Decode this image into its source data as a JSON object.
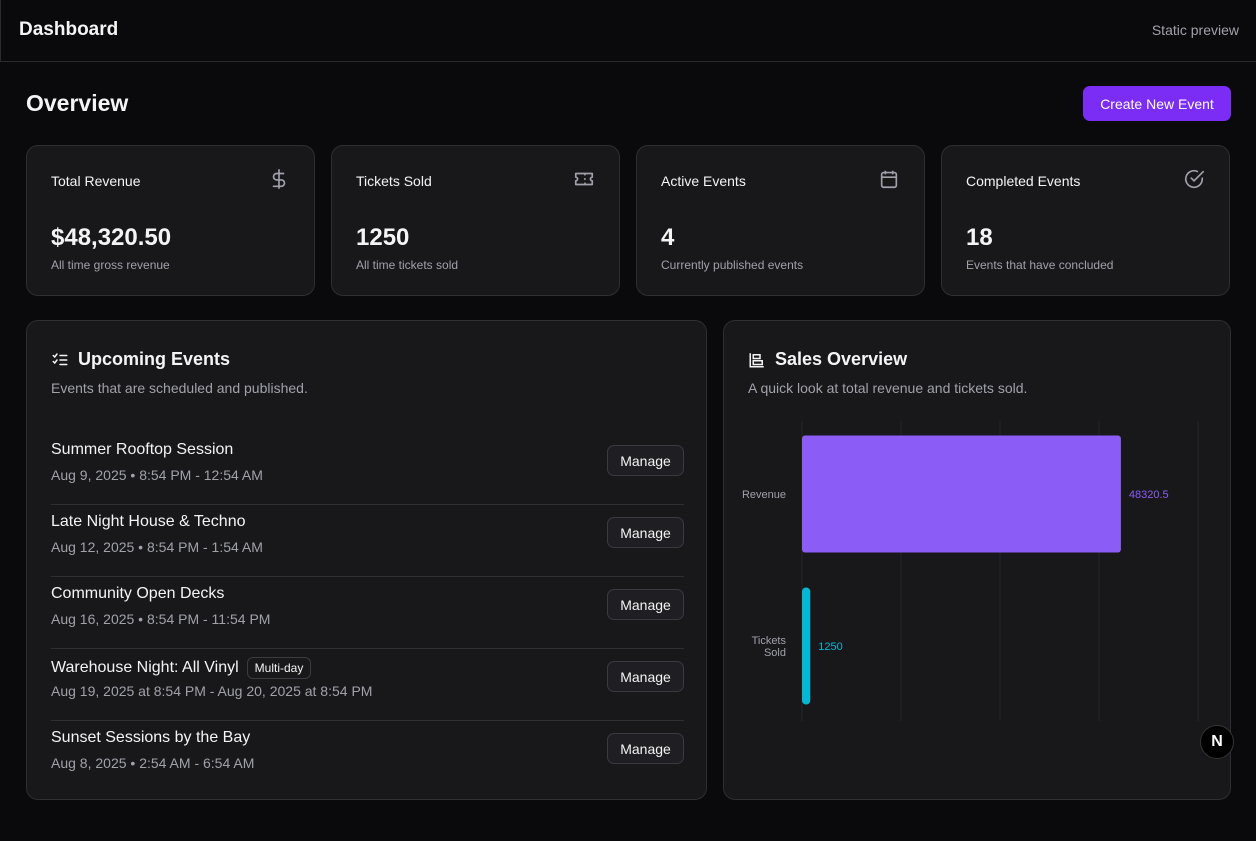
{
  "header": {
    "title": "Dashboard",
    "preview": "Static preview"
  },
  "overview": {
    "title": "Overview",
    "create_label": "Create New Event"
  },
  "stats": [
    {
      "label": "Total Revenue",
      "value": "$48,320.50",
      "sub": "All time gross revenue",
      "icon": "dollar-icon"
    },
    {
      "label": "Tickets Sold",
      "value": "1250",
      "sub": "All time tickets sold",
      "icon": "ticket-icon"
    },
    {
      "label": "Active Events",
      "value": "4",
      "sub": "Currently published events",
      "icon": "calendar-icon"
    },
    {
      "label": "Completed Events",
      "value": "18",
      "sub": "Events that have concluded",
      "icon": "check-circle-icon"
    }
  ],
  "upcoming": {
    "title": "Upcoming Events",
    "subtitle": "Events that are scheduled and published.",
    "manage_label": "Manage",
    "events": [
      {
        "name": "Summer Rooftop Session",
        "when": "Aug 9, 2025 • 8:54 PM - 12:54 AM",
        "badge": ""
      },
      {
        "name": "Late Night House & Techno",
        "when": "Aug 12, 2025 • 8:54 PM - 1:54 AM",
        "badge": ""
      },
      {
        "name": "Community Open Decks",
        "when": "Aug 16, 2025 • 8:54 PM - 11:54 PM",
        "badge": ""
      },
      {
        "name": "Warehouse Night: All Vinyl",
        "when": "Aug 19, 2025 at 8:54 PM - Aug 20, 2025 at 8:54 PM",
        "badge": "Multi-day"
      },
      {
        "name": "Sunset Sessions by the Bay",
        "when": "Aug 8, 2025 • 2:54 AM - 6:54 AM",
        "badge": ""
      }
    ]
  },
  "sales": {
    "title": "Sales Overview",
    "subtitle": "A quick look at total revenue and tickets sold."
  },
  "chart_data": {
    "type": "bar",
    "orientation": "horizontal",
    "categories": [
      "Revenue",
      "Tickets Sold"
    ],
    "values": [
      48320.5,
      1250
    ],
    "data_labels": [
      "48320.5",
      "1250"
    ],
    "colors": [
      "#8b5cf6",
      "#06b6d4"
    ],
    "xlim": [
      0,
      60000
    ],
    "grid": true,
    "title": "",
    "xlabel": "",
    "ylabel": ""
  },
  "fab": {
    "label": "N"
  }
}
